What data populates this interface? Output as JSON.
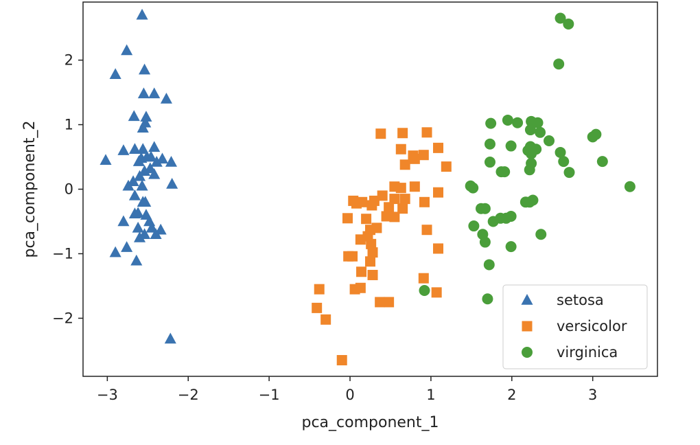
{
  "chart_data": {
    "type": "scatter",
    "title": "",
    "xlabel": "pca_component_1",
    "ylabel": "pca_component_2",
    "xlim": [
      -3.3,
      3.8
    ],
    "ylim": [
      -2.9,
      2.9
    ],
    "xticks": [
      -3,
      -2,
      -1,
      0,
      1,
      2,
      3
    ],
    "yticks": [
      -2,
      -1,
      0,
      1,
      2
    ],
    "xtick_labels": [
      "−3",
      "−2",
      "−1",
      "0",
      "1",
      "2",
      "3"
    ],
    "ytick_labels": [
      "−2",
      "−1",
      "0",
      "1",
      "2"
    ],
    "grid": false,
    "legend_position": "lower-right",
    "series": [
      {
        "name": "setosa",
        "marker": "triangle",
        "color": "#3a73b0",
        "points": [
          [
            -2.57,
            2.7
          ],
          [
            -2.76,
            2.15
          ],
          [
            -2.9,
            1.78
          ],
          [
            -2.54,
            1.85
          ],
          [
            -2.55,
            1.48
          ],
          [
            -2.42,
            1.48
          ],
          [
            -2.27,
            1.4
          ],
          [
            -2.67,
            1.13
          ],
          [
            -2.52,
            1.12
          ],
          [
            -2.56,
            0.95
          ],
          [
            -2.53,
            1.03
          ],
          [
            -2.42,
            0.65
          ],
          [
            -2.56,
            0.62
          ],
          [
            -2.66,
            0.62
          ],
          [
            -2.8,
            0.6
          ],
          [
            -2.58,
            0.48
          ],
          [
            -2.51,
            0.5
          ],
          [
            -2.46,
            0.5
          ],
          [
            -2.61,
            0.43
          ],
          [
            -2.39,
            0.42
          ],
          [
            -2.32,
            0.47
          ],
          [
            -2.21,
            0.42
          ],
          [
            -3.02,
            0.45
          ],
          [
            -2.47,
            0.32
          ],
          [
            -2.54,
            0.28
          ],
          [
            -2.42,
            0.23
          ],
          [
            -2.6,
            0.2
          ],
          [
            -2.68,
            0.12
          ],
          [
            -2.74,
            0.05
          ],
          [
            -2.57,
            0.05
          ],
          [
            -2.2,
            0.08
          ],
          [
            -2.66,
            -0.1
          ],
          [
            -2.56,
            -0.2
          ],
          [
            -2.53,
            -0.2
          ],
          [
            -2.62,
            -0.37
          ],
          [
            -2.52,
            -0.4
          ],
          [
            -2.66,
            -0.38
          ],
          [
            -2.8,
            -0.5
          ],
          [
            -2.48,
            -0.5
          ],
          [
            -2.62,
            -0.6
          ],
          [
            -2.45,
            -0.6
          ],
          [
            -2.34,
            -0.63
          ],
          [
            -2.54,
            -0.7
          ],
          [
            -2.4,
            -0.7
          ],
          [
            -2.6,
            -0.75
          ],
          [
            -2.76,
            -0.9
          ],
          [
            -2.9,
            -0.98
          ],
          [
            -2.64,
            -1.11
          ],
          [
            -2.22,
            -2.32
          ]
        ]
      },
      {
        "name": "versicolor",
        "marker": "square",
        "color": "#f0862a",
        "points": [
          [
            0.38,
            0.86
          ],
          [
            0.65,
            0.87
          ],
          [
            0.95,
            0.88
          ],
          [
            0.63,
            0.62
          ],
          [
            1.09,
            0.64
          ],
          [
            0.78,
            0.52
          ],
          [
            0.91,
            0.53
          ],
          [
            0.68,
            0.38
          ],
          [
            1.19,
            0.35
          ],
          [
            0.8,
            0.47
          ],
          [
            0.55,
            0.04
          ],
          [
            0.63,
            0.02
          ],
          [
            0.8,
            0.04
          ],
          [
            1.09,
            -0.05
          ],
          [
            0.4,
            -0.1
          ],
          [
            0.55,
            -0.15
          ],
          [
            0.68,
            -0.15
          ],
          [
            0.3,
            -0.18
          ],
          [
            0.04,
            -0.18
          ],
          [
            0.15,
            -0.2
          ],
          [
            0.27,
            -0.25
          ],
          [
            0.92,
            -0.2
          ],
          [
            0.48,
            -0.28
          ],
          [
            0.65,
            -0.3
          ],
          [
            0.08,
            -0.22
          ],
          [
            0.55,
            -0.43
          ],
          [
            0.45,
            -0.42
          ],
          [
            0.2,
            -0.46
          ],
          [
            -0.03,
            -0.45
          ],
          [
            0.33,
            -0.6
          ],
          [
            0.25,
            -0.63
          ],
          [
            0.95,
            -0.63
          ],
          [
            0.22,
            -0.73
          ],
          [
            0.13,
            -0.78
          ],
          [
            0.26,
            -0.85
          ],
          [
            1.09,
            -0.92
          ],
          [
            0.28,
            -0.98
          ],
          [
            -0.02,
            -1.04
          ],
          [
            0.03,
            -1.04
          ],
          [
            0.25,
            -1.12
          ],
          [
            0.14,
            -1.28
          ],
          [
            0.28,
            -1.33
          ],
          [
            0.91,
            -1.38
          ],
          [
            -0.38,
            -1.55
          ],
          [
            0.06,
            -1.55
          ],
          [
            0.13,
            -1.53
          ],
          [
            1.07,
            -1.6
          ],
          [
            0.37,
            -1.75
          ],
          [
            0.48,
            -1.75
          ],
          [
            -0.41,
            -1.84
          ],
          [
            -0.3,
            -2.02
          ],
          [
            -0.1,
            -2.65
          ]
        ]
      },
      {
        "name": "virginica",
        "marker": "circle",
        "color": "#4a9e3a",
        "points": [
          [
            2.6,
            2.65
          ],
          [
            2.7,
            2.56
          ],
          [
            2.58,
            1.94
          ],
          [
            1.95,
            1.07
          ],
          [
            2.07,
            1.03
          ],
          [
            1.74,
            1.02
          ],
          [
            2.24,
            1.05
          ],
          [
            2.32,
            1.03
          ],
          [
            2.23,
            0.92
          ],
          [
            2.35,
            0.88
          ],
          [
            2.46,
            0.75
          ],
          [
            1.73,
            0.7
          ],
          [
            1.99,
            0.67
          ],
          [
            2.23,
            0.66
          ],
          [
            2.2,
            0.6
          ],
          [
            2.24,
            0.55
          ],
          [
            2.3,
            0.62
          ],
          [
            2.6,
            0.57
          ],
          [
            3.0,
            0.81
          ],
          [
            3.04,
            0.85
          ],
          [
            2.64,
            0.43
          ],
          [
            1.73,
            0.42
          ],
          [
            2.24,
            0.4
          ],
          [
            3.12,
            0.43
          ],
          [
            1.87,
            0.27
          ],
          [
            1.91,
            0.27
          ],
          [
            2.22,
            0.3
          ],
          [
            2.71,
            0.26
          ],
          [
            1.49,
            0.05
          ],
          [
            1.52,
            0.02
          ],
          [
            1.62,
            -0.3
          ],
          [
            1.67,
            -0.3
          ],
          [
            1.86,
            -0.45
          ],
          [
            1.93,
            -0.45
          ],
          [
            2.22,
            -0.2
          ],
          [
            2.26,
            -0.17
          ],
          [
            1.77,
            -0.5
          ],
          [
            1.99,
            -0.42
          ],
          [
            1.53,
            -0.57
          ],
          [
            1.64,
            -0.7
          ],
          [
            1.67,
            -0.82
          ],
          [
            2.36,
            -0.7
          ],
          [
            1.99,
            -0.89
          ],
          [
            1.72,
            -1.17
          ],
          [
            0.92,
            -1.57
          ],
          [
            1.7,
            -1.7
          ],
          [
            3.46,
            0.04
          ],
          [
            2.17,
            -0.2
          ]
        ]
      }
    ]
  }
}
